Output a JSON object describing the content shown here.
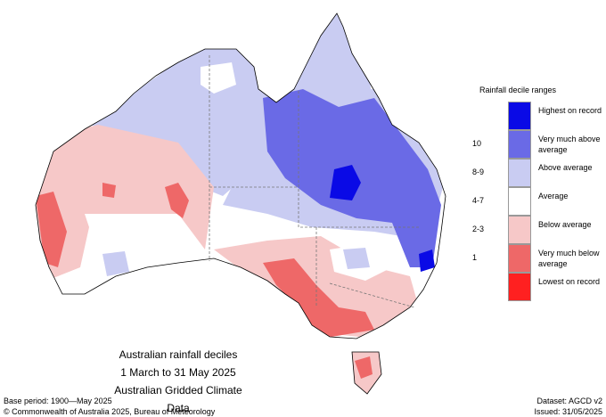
{
  "map": {
    "caption": [
      "Australian rainfall deciles",
      "1 March to 31 May 2025",
      "Australian Gridded Climate Data"
    ],
    "legend": {
      "title": "Rainfall decile ranges",
      "items": [
        {
          "label": "Highest on record",
          "color": "#0a0ae6"
        },
        {
          "decile": "10",
          "label": "Very much above average",
          "color": "#6a6ae6"
        },
        {
          "decile": "8-9",
          "label": "Above average",
          "color": "#c9ccf2"
        },
        {
          "decile": "4-7",
          "label": "Average",
          "color": "#ffffff"
        },
        {
          "decile": "2-3",
          "label": "Below average",
          "color": "#f6c8c8"
        },
        {
          "decile": "1",
          "label": "Very much below average",
          "color": "#ee6868"
        },
        {
          "label": "Lowest on record",
          "color": "#ff2020"
        }
      ]
    },
    "footer": {
      "base_period": "Base period: 1900—May 2025",
      "dataset": "Dataset: AGCD v2",
      "copyright": "© Commonwealth of Australia 2025, Bureau of Meteorology",
      "issued": "Issued: 31/05/2025"
    }
  }
}
